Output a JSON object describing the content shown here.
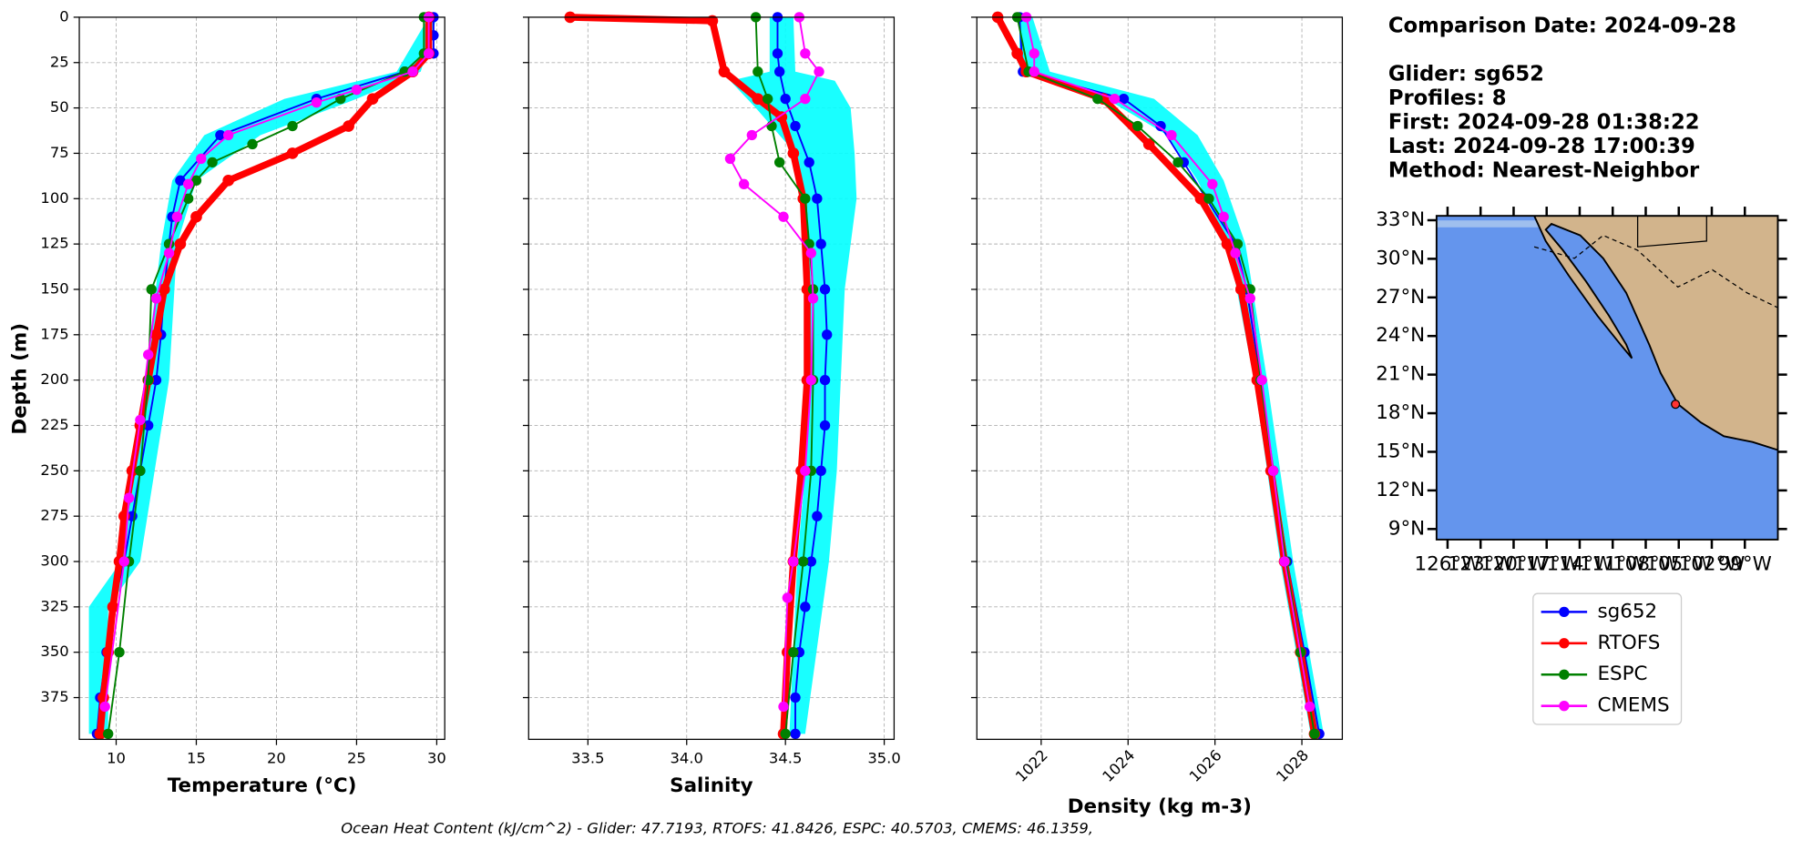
{
  "info": [
    "Comparison Date: 2024-09-28",
    "Glider: sg652",
    "Profiles: 8",
    "First: 2024-09-28 01:38:22",
    "Last: 2024-09-28 17:00:39",
    "Method: Nearest-Neighbor"
  ],
  "footnote": "Ocean Heat Content (kJ/cm^2) - Glider: 47.7193,  RTOFS: 41.8426,  ESPC: 40.5703,  CMEMS: 46.1359,",
  "chart_data": [
    {
      "type": "profile",
      "xlabel": "Temperature (°C)",
      "ylabel": "Depth (m)",
      "xlim": [
        7.7,
        30.5
      ],
      "xticks": [
        10,
        15,
        20,
        25,
        30
      ],
      "ylim": [
        398,
        0
      ],
      "yticks": [
        0,
        25,
        50,
        75,
        100,
        125,
        150,
        175,
        200,
        225,
        250,
        275,
        300,
        325,
        350,
        375
      ],
      "ytick_labels": true,
      "grid": true,
      "glider_range": {
        "color": "#00ffff",
        "depth": [
          0,
          30,
          45,
          65,
          90,
          125,
          200,
          300,
          325,
          395
        ],
        "min": [
          29.5,
          27.5,
          20.5,
          15.5,
          13.5,
          12.8,
          11.8,
          10.3,
          8.3,
          8.3
        ],
        "max": [
          30,
          29,
          25,
          19,
          15,
          13.8,
          13.3,
          11.5,
          9.5,
          9.5
        ]
      },
      "series": [
        {
          "name": "sg652",
          "color": "#0000ff",
          "line_width": 1.5,
          "depth": [
            0,
            10,
            20,
            30,
            45,
            65,
            90,
            110,
            125,
            150,
            175,
            200,
            225,
            250,
            275,
            300,
            325,
            350,
            375,
            395
          ],
          "values": [
            29.8,
            29.8,
            29.8,
            28,
            22.5,
            16.5,
            14,
            13.5,
            13.3,
            13,
            12.8,
            12.5,
            12,
            11.5,
            11,
            10.5,
            9.8,
            9.4,
            9.0,
            8.8
          ]
        },
        {
          "name": "RTOFS",
          "color": "#ff0000",
          "line_width": 6,
          "depth": [
            0,
            20,
            30,
            45,
            60,
            75,
            90,
            110,
            125,
            150,
            175,
            200,
            225,
            250,
            275,
            300,
            325,
            350,
            375,
            395
          ],
          "values": [
            29.5,
            29.5,
            28.5,
            26,
            24.5,
            21,
            17,
            15,
            14,
            13,
            12.5,
            12,
            11.5,
            11,
            10.5,
            10.2,
            9.8,
            9.5,
            9.2,
            9.0
          ]
        },
        {
          "name": "ESPC",
          "color": "#008000",
          "line_width": 1.5,
          "depth": [
            0,
            20,
            30,
            45,
            60,
            70,
            80,
            90,
            100,
            125,
            150,
            200,
            250,
            300,
            350,
            395
          ],
          "values": [
            29.2,
            29.2,
            28,
            24,
            21,
            18.5,
            16,
            15,
            14.5,
            13.3,
            12.2,
            12,
            11.5,
            10.8,
            10.2,
            9.5
          ]
        },
        {
          "name": "CMEMS",
          "color": "#ff00ff",
          "line_width": 1.5,
          "depth": [
            0,
            20,
            30,
            40,
            47,
            65,
            78,
            92,
            110,
            130,
            155,
            186,
            222,
            265,
            300,
            380
          ],
          "values": [
            29.5,
            29.5,
            28.5,
            25,
            22.5,
            17,
            15.3,
            14.5,
            13.8,
            13.3,
            12.5,
            12,
            11.5,
            10.8,
            10.5,
            9.3
          ]
        }
      ]
    },
    {
      "type": "profile",
      "xlabel": "Salinity",
      "xlim": [
        33.2,
        35.05
      ],
      "xticks": [
        33.5,
        {
          "value": 34,
          "label": "34.0"
        },
        34.5,
        {
          "value": 35,
          "label": "35.0"
        }
      ],
      "ylim": [
        398,
        0
      ],
      "yticks": [
        0,
        25,
        50,
        75,
        100,
        125,
        150,
        175,
        200,
        225,
        250,
        275,
        300,
        325,
        350,
        375
      ],
      "ytick_labels": false,
      "grid": true,
      "glider_range": {
        "color": "#00ffff",
        "depth": [
          0,
          30,
          35,
          50,
          75,
          100,
          150,
          250,
          300,
          395
        ],
        "min": [
          34.42,
          34.42,
          34.22,
          34.35,
          34.55,
          34.6,
          34.62,
          34.6,
          34.56,
          34.52
        ],
        "max": [
          34.54,
          34.55,
          34.75,
          34.83,
          34.85,
          34.86,
          34.8,
          34.76,
          34.72,
          34.6
        ]
      },
      "series": [
        {
          "color": "#0000ff",
          "line_width": 1.5,
          "depth": [
            0,
            20,
            30,
            45,
            60,
            80,
            100,
            125,
            150,
            175,
            200,
            225,
            250,
            275,
            300,
            325,
            350,
            375,
            395
          ],
          "values": [
            34.46,
            34.46,
            34.47,
            34.5,
            34.55,
            34.62,
            34.66,
            34.68,
            34.7,
            34.71,
            34.7,
            34.7,
            34.68,
            34.66,
            34.63,
            34.6,
            34.57,
            34.55,
            34.55
          ]
        },
        {
          "color": "#ff0000",
          "line_width": 6,
          "depth": [
            0,
            2,
            30,
            45,
            55,
            75,
            100,
            150,
            200,
            250,
            300,
            350,
            395
          ],
          "values": [
            33.41,
            34.13,
            34.19,
            34.36,
            34.48,
            34.54,
            34.59,
            34.61,
            34.61,
            34.58,
            34.54,
            34.51,
            34.49
          ]
        },
        {
          "color": "#008000",
          "line_width": 1.5,
          "depth": [
            0,
            30,
            45,
            60,
            80,
            100,
            125,
            150,
            200,
            250,
            300,
            350,
            395
          ],
          "values": [
            34.35,
            34.36,
            34.41,
            34.43,
            34.47,
            34.6,
            34.62,
            34.64,
            34.64,
            34.63,
            34.59,
            34.54,
            34.5
          ]
        },
        {
          "color": "#ff00ff",
          "line_width": 1.5,
          "depth": [
            0,
            20,
            30,
            45,
            65,
            78,
            92,
            110,
            130,
            155,
            200,
            250,
            300,
            320,
            380
          ],
          "values": [
            34.57,
            34.6,
            34.67,
            34.6,
            34.33,
            34.22,
            34.29,
            34.49,
            34.63,
            34.64,
            34.63,
            34.6,
            34.54,
            34.51,
            34.49
          ]
        }
      ]
    },
    {
      "type": "profile",
      "xlabel": "Density (kg m-3)",
      "xlim": [
        1020.52,
        1028.93
      ],
      "xticks": [
        1022,
        1024,
        1026,
        1028
      ],
      "xtick_rotate": true,
      "ylim": [
        398,
        0
      ],
      "yticks": [
        0,
        25,
        50,
        75,
        100,
        125,
        150,
        175,
        200,
        225,
        250,
        275,
        300,
        325,
        350,
        375
      ],
      "ytick_labels": false,
      "grid": true,
      "glider_range": {
        "color": "#00ffff",
        "depth": [
          0,
          30,
          45,
          65,
          90,
          125,
          200,
          300,
          395
        ],
        "min": [
          1021.5,
          1021.5,
          1023.5,
          1024.9,
          1025.6,
          1026.3,
          1026.9,
          1027.5,
          1028.2
        ],
        "max": [
          1021.8,
          1022.2,
          1024.6,
          1025.6,
          1026.2,
          1026.7,
          1027.2,
          1027.8,
          1028.5
        ]
      },
      "series": [
        {
          "color": "#0000ff",
          "line_width": 1.5,
          "depth": [
            0,
            30,
            45,
            60,
            80,
            100,
            125,
            150,
            200,
            250,
            300,
            350,
            395
          ],
          "values": [
            1021.5,
            1021.58,
            1023.9,
            1024.75,
            1025.28,
            1025.8,
            1026.47,
            1026.73,
            1027.05,
            1027.34,
            1027.66,
            1028.06,
            1028.4
          ]
        },
        {
          "color": "#ff0000",
          "line_width": 6,
          "depth": [
            0,
            20,
            30,
            45,
            70,
            100,
            125,
            150,
            200,
            250,
            300,
            350,
            395
          ],
          "values": [
            1021.0,
            1021.45,
            1021.66,
            1023.43,
            1024.48,
            1025.67,
            1026.28,
            1026.6,
            1026.97,
            1027.29,
            1027.6,
            1027.97,
            1028.29
          ]
        },
        {
          "color": "#008000",
          "line_width": 1.5,
          "depth": [
            0,
            30,
            45,
            60,
            80,
            100,
            125,
            150,
            200,
            250,
            300,
            350,
            395
          ],
          "values": [
            1021.45,
            1021.71,
            1023.3,
            1024.22,
            1025.15,
            1025.86,
            1026.52,
            1026.81,
            1027.05,
            1027.34,
            1027.63,
            1027.97,
            1028.29
          ]
        },
        {
          "color": "#ff00ff",
          "line_width": 1.5,
          "depth": [
            0,
            20,
            30,
            45,
            65,
            92,
            110,
            130,
            155,
            200,
            250,
            300,
            380
          ],
          "values": [
            1021.66,
            1021.84,
            1021.84,
            1023.69,
            1025.0,
            1025.94,
            1026.2,
            1026.47,
            1026.81,
            1027.08,
            1027.34,
            1027.6,
            1028.18
          ]
        }
      ]
    },
    {
      "type": "map",
      "xlim": [
        -127,
        -96
      ],
      "ylim": [
        8.18,
        33.34
      ],
      "yticks": [
        {
          "value": 33,
          "label": "33°N"
        },
        {
          "value": 30,
          "label": "30°N"
        },
        {
          "value": 27,
          "label": "27°N"
        },
        {
          "value": 24,
          "label": "24°N"
        },
        {
          "value": 21,
          "label": "21°N"
        },
        {
          "value": 18,
          "label": "18°N"
        },
        {
          "value": 15,
          "label": "15°N"
        },
        {
          "value": 12,
          "label": "12°N"
        },
        {
          "value": 9,
          "label": "9°N"
        }
      ],
      "xticks": [
        {
          "value": -126,
          "label": "126°W"
        },
        {
          "value": -123,
          "label": "123°W"
        },
        {
          "value": -120,
          "label": "120°W"
        },
        {
          "value": -117,
          "label": "117°W"
        },
        {
          "value": -114,
          "label": "114°W"
        },
        {
          "value": -111,
          "label": "111°W"
        },
        {
          "value": -108,
          "label": "108°W"
        },
        {
          "value": -105,
          "label": "105°W"
        },
        {
          "value": -102,
          "label": "102°W"
        },
        {
          "value": -99,
          "label": "99°W"
        }
      ],
      "marker": {
        "lat": 18.7,
        "lon": -105.3,
        "color": "#ff3333"
      }
    }
  ]
}
